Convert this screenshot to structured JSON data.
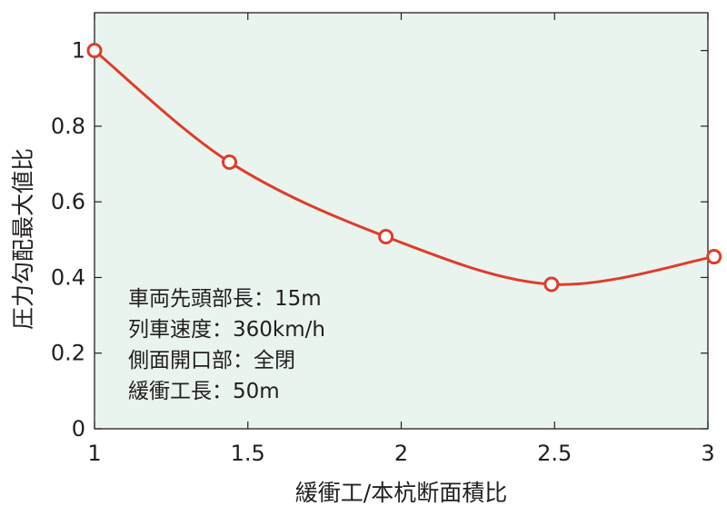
{
  "chart_data": {
    "type": "line",
    "title": "",
    "xlabel": "緩衝工/本杭断面積比",
    "ylabel": "圧力勾配最大値比",
    "xlim": [
      1,
      3
    ],
    "ylim": [
      0,
      1.1
    ],
    "x_ticks": [
      {
        "value": 1,
        "label": "1"
      },
      {
        "value": 1.5,
        "label": "1.5"
      },
      {
        "value": 2,
        "label": "2"
      },
      {
        "value": 2.5,
        "label": "2.5"
      },
      {
        "value": 3,
        "label": "3"
      }
    ],
    "y_ticks": [
      {
        "value": 0,
        "label": "0"
      },
      {
        "value": 0.2,
        "label": "0.2"
      },
      {
        "value": 0.4,
        "label": "0.4"
      },
      {
        "value": 0.6,
        "label": "0.6"
      },
      {
        "value": 0.8,
        "label": "0.8"
      },
      {
        "value": 1.0,
        "label": "1"
      }
    ],
    "grid": false,
    "plot_background": "#eaf4ee",
    "series": [
      {
        "color": "#e03c2a",
        "marker": "open-circle",
        "smooth": true,
        "points": [
          {
            "x": 1.0,
            "y": 1.0
          },
          {
            "x": 1.44,
            "y": 0.705
          },
          {
            "x": 1.95,
            "y": 0.508
          },
          {
            "x": 2.49,
            "y": 0.382
          },
          {
            "x": 3.02,
            "y": 0.455
          }
        ]
      }
    ],
    "annotation_lines": [
      "車両先頭部長：15m",
      "列車速度：360km/h",
      "側面開口部：全閉",
      "緩衝工長：50m"
    ]
  }
}
